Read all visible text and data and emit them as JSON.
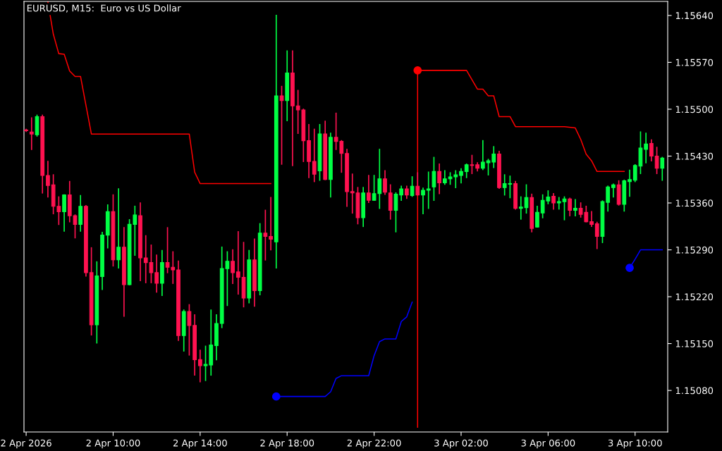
{
  "chart_data": {
    "type": "candlestick",
    "title": "EURUSD, M15:  Euro vs US Dollar",
    "x": [
      "2026-04-02T06:00",
      "2026-04-02T06:15",
      "2026-04-02T06:30",
      "2026-04-02T06:45",
      "2026-04-02T07:00",
      "2026-04-02T07:15",
      "2026-04-02T07:30",
      "2026-04-02T07:45",
      "2026-04-02T08:00",
      "2026-04-02T08:15",
      "2026-04-02T08:30",
      "2026-04-02T08:45",
      "2026-04-02T09:00",
      "2026-04-02T09:15",
      "2026-04-02T09:30",
      "2026-04-02T09:45",
      "2026-04-02T10:00",
      "2026-04-02T10:15",
      "2026-04-02T10:30",
      "2026-04-02T10:45",
      "2026-04-02T11:00",
      "2026-04-02T11:15",
      "2026-04-02T11:30",
      "2026-04-02T11:45",
      "2026-04-02T12:00",
      "2026-04-02T12:15",
      "2026-04-02T12:30",
      "2026-04-02T12:45",
      "2026-04-02T13:00",
      "2026-04-02T13:15",
      "2026-04-02T13:30",
      "2026-04-02T13:45",
      "2026-04-02T14:00",
      "2026-04-02T14:15",
      "2026-04-02T14:30",
      "2026-04-02T14:45",
      "2026-04-02T15:00",
      "2026-04-02T15:15",
      "2026-04-02T15:30",
      "2026-04-02T15:45",
      "2026-04-02T16:00",
      "2026-04-02T16:15",
      "2026-04-02T16:30",
      "2026-04-02T16:45",
      "2026-04-02T17:00",
      "2026-04-02T17:15",
      "2026-04-02T17:30",
      "2026-04-02T17:45",
      "2026-04-02T18:00",
      "2026-04-02T18:15",
      "2026-04-02T18:30",
      "2026-04-02T18:45",
      "2026-04-02T19:00",
      "2026-04-02T19:15",
      "2026-04-02T19:30",
      "2026-04-02T19:45",
      "2026-04-02T20:00",
      "2026-04-02T20:15",
      "2026-04-02T20:30",
      "2026-04-02T20:45",
      "2026-04-02T21:00",
      "2026-04-02T21:15",
      "2026-04-02T21:30",
      "2026-04-02T21:45",
      "2026-04-02T22:00",
      "2026-04-02T22:15",
      "2026-04-02T22:30",
      "2026-04-02T22:45",
      "2026-04-02T23:00",
      "2026-04-02T23:15",
      "2026-04-02T23:30",
      "2026-04-02T23:45",
      "2026-04-03T00:00",
      "2026-04-03T00:15",
      "2026-04-03T00:30",
      "2026-04-03T00:45",
      "2026-04-03T01:00",
      "2026-04-03T01:15",
      "2026-04-03T01:30",
      "2026-04-03T01:45",
      "2026-04-03T02:00",
      "2026-04-03T02:15",
      "2026-04-03T02:30",
      "2026-04-03T02:45",
      "2026-04-03T03:00",
      "2026-04-03T03:15",
      "2026-04-03T03:30",
      "2026-04-03T03:45",
      "2026-04-03T04:00",
      "2026-04-03T04:15",
      "2026-04-03T04:30",
      "2026-04-03T04:45",
      "2026-04-03T05:00",
      "2026-04-03T05:15",
      "2026-04-03T05:30",
      "2026-04-03T05:45",
      "2026-04-03T06:00",
      "2026-04-03T06:15",
      "2026-04-03T06:30",
      "2026-04-03T06:45",
      "2026-04-03T07:00",
      "2026-04-03T07:15",
      "2026-04-03T07:30",
      "2026-04-03T07:45",
      "2026-04-03T08:00",
      "2026-04-03T08:15",
      "2026-04-03T08:30",
      "2026-04-03T08:45",
      "2026-04-03T09:00",
      "2026-04-03T09:15",
      "2026-04-03T09:30",
      "2026-04-03T09:45",
      "2026-04-03T10:00",
      "2026-04-03T10:15",
      "2026-04-03T10:30",
      "2026-04-03T10:45",
      "2026-04-03T11:00",
      "2026-04-03T11:15"
    ],
    "ohlc": [
      [
        1.15469,
        1.1547,
        1.15467,
        1.15468
      ],
      [
        1.15466,
        1.15487,
        1.1544,
        1.15463
      ],
      [
        1.15462,
        1.15491,
        1.1546,
        1.15489
      ],
      [
        1.15489,
        1.15491,
        1.15375,
        1.15401
      ],
      [
        1.15401,
        1.15422,
        1.15369,
        1.15386
      ],
      [
        1.15387,
        1.15402,
        1.15344,
        1.15355
      ],
      [
        1.15355,
        1.15369,
        1.15328,
        1.15347
      ],
      [
        1.15347,
        1.15372,
        1.15318,
        1.15372
      ],
      [
        1.15372,
        1.15392,
        1.15332,
        1.15341
      ],
      [
        1.15341,
        1.15342,
        1.15308,
        1.15328
      ],
      [
        1.15328,
        1.15371,
        1.15318,
        1.15355
      ],
      [
        1.15355,
        1.15356,
        1.15251,
        1.15256
      ],
      [
        1.15256,
        1.15293,
        1.15163,
        1.15178
      ],
      [
        1.15178,
        1.15272,
        1.15151,
        1.15251
      ],
      [
        1.1525,
        1.15316,
        1.15231,
        1.15312
      ],
      [
        1.15312,
        1.15357,
        1.15293,
        1.15347
      ],
      [
        1.15347,
        1.15372,
        1.15266,
        1.15275
      ],
      [
        1.15275,
        1.15381,
        1.15263,
        1.15294
      ],
      [
        1.15294,
        1.15323,
        1.15191,
        1.15238
      ],
      [
        1.15238,
        1.15335,
        1.15238,
        1.15328
      ],
      [
        1.15328,
        1.15355,
        1.15282,
        1.15342
      ],
      [
        1.15341,
        1.1536,
        1.15244,
        1.15278
      ],
      [
        1.15278,
        1.15311,
        1.15241,
        1.15271
      ],
      [
        1.15271,
        1.15297,
        1.15241,
        1.15256
      ],
      [
        1.15256,
        1.15282,
        1.15227,
        1.1524
      ],
      [
        1.1524,
        1.15289,
        1.15222,
        1.15271
      ],
      [
        1.15271,
        1.15323,
        1.15256,
        1.15264
      ],
      [
        1.15264,
        1.15287,
        1.1524,
        1.1526
      ],
      [
        1.1526,
        1.15273,
        1.15155,
        1.15162
      ],
      [
        1.15162,
        1.152,
        1.15139,
        1.15198
      ],
      [
        1.15198,
        1.15208,
        1.15133,
        1.15177
      ],
      [
        1.15177,
        1.15193,
        1.15103,
        1.15126
      ],
      [
        1.15126,
        1.1514,
        1.15093,
        1.15117
      ],
      [
        1.15117,
        1.15146,
        1.15095,
        1.15119
      ],
      [
        1.15118,
        1.152,
        1.15103,
        1.15148
      ],
      [
        1.15147,
        1.15193,
        1.15126,
        1.1518
      ],
      [
        1.1518,
        1.15294,
        1.15174,
        1.15262
      ],
      [
        1.15262,
        1.15287,
        1.15207,
        1.15273
      ],
      [
        1.15273,
        1.1529,
        1.1524,
        1.15256
      ],
      [
        1.15257,
        1.15317,
        1.15224,
        1.15249
      ],
      [
        1.15249,
        1.15301,
        1.15205,
        1.15218
      ],
      [
        1.15218,
        1.15289,
        1.15211,
        1.15275
      ],
      [
        1.15275,
        1.15306,
        1.15206,
        1.15229
      ],
      [
        1.15229,
        1.15329,
        1.15223,
        1.15315
      ],
      [
        1.15315,
        1.15349,
        1.15275,
        1.1531
      ],
      [
        1.1531,
        1.15368,
        1.1529,
        1.15306
      ],
      [
        1.15302,
        1.1564,
        1.15263,
        1.1552
      ],
      [
        1.1552,
        1.15534,
        1.15418,
        1.15513
      ],
      [
        1.15513,
        1.15587,
        1.15483,
        1.15554
      ],
      [
        1.15554,
        1.15587,
        1.15416,
        1.15505
      ],
      [
        1.15505,
        1.15528,
        1.15464,
        1.15499
      ],
      [
        1.15499,
        1.155,
        1.15422,
        1.15453
      ],
      [
        1.15453,
        1.15477,
        1.15398,
        1.15422
      ],
      [
        1.15422,
        1.1547,
        1.15392,
        1.15403
      ],
      [
        1.15408,
        1.15477,
        1.15394,
        1.15463
      ],
      [
        1.15463,
        1.15482,
        1.15395,
        1.15395
      ],
      [
        1.15395,
        1.15464,
        1.15369,
        1.15458
      ],
      [
        1.15458,
        1.15494,
        1.1544,
        1.15452
      ],
      [
        1.15452,
        1.15453,
        1.15406,
        1.15434
      ],
      [
        1.15434,
        1.1544,
        1.15355,
        1.15377
      ],
      [
        1.15377,
        1.15403,
        1.15345,
        1.15375
      ],
      [
        1.15375,
        1.15383,
        1.15329,
        1.15338
      ],
      [
        1.15338,
        1.15383,
        1.15325,
        1.15375
      ],
      [
        1.15375,
        1.15401,
        1.15361,
        1.15364
      ],
      [
        1.15364,
        1.15401,
        1.15364,
        1.15374
      ],
      [
        1.15374,
        1.1544,
        1.15352,
        1.15396
      ],
      [
        1.15396,
        1.15408,
        1.15373,
        1.15376
      ],
      [
        1.15375,
        1.15387,
        1.15336,
        1.15349
      ],
      [
        1.15349,
        1.15375,
        1.15317,
        1.15373
      ],
      [
        1.15372,
        1.15385,
        1.15364,
        1.15381
      ],
      [
        1.15381,
        1.15385,
        1.15367,
        1.15372
      ],
      [
        1.15371,
        1.15399,
        1.1537,
        1.15385
      ],
      [
        1.15385,
        1.15405,
        1.15372,
        1.15372
      ],
      [
        1.15372,
        1.15382,
        1.15344,
        1.15379
      ],
      [
        1.15379,
        1.15406,
        1.15352,
        1.15381
      ],
      [
        1.15384,
        1.15428,
        1.15364,
        1.15407
      ],
      [
        1.15407,
        1.15418,
        1.15374,
        1.1539
      ],
      [
        1.1539,
        1.15408,
        1.15388,
        1.15396
      ],
      [
        1.15396,
        1.15405,
        1.15388,
        1.15399
      ],
      [
        1.15399,
        1.15408,
        1.15383,
        1.15402
      ],
      [
        1.15401,
        1.15411,
        1.1539,
        1.15407
      ],
      [
        1.15407,
        1.15418,
        1.15398,
        1.15417
      ],
      [
        1.15417,
        1.15431,
        1.15404,
        1.15416
      ],
      [
        1.15417,
        1.1542,
        1.15408,
        1.15412
      ],
      [
        1.15412,
        1.15453,
        1.1541,
        1.15421
      ],
      [
        1.1542,
        1.15425,
        1.15402,
        1.15423
      ],
      [
        1.15421,
        1.15444,
        1.15413,
        1.15433
      ],
      [
        1.15433,
        1.15437,
        1.15382,
        1.15383
      ],
      [
        1.15383,
        1.15402,
        1.15372,
        1.15389
      ],
      [
        1.15388,
        1.154,
        1.15368,
        1.15389
      ],
      [
        1.15389,
        1.15392,
        1.15351,
        1.15352
      ],
      [
        1.15352,
        1.15369,
        1.15336,
        1.15354
      ],
      [
        1.15353,
        1.15387,
        1.15345,
        1.15368
      ],
      [
        1.15368,
        1.15373,
        1.15317,
        1.15322
      ],
      [
        1.15324,
        1.15355,
        1.15324,
        1.15346
      ],
      [
        1.15345,
        1.15372,
        1.15338,
        1.15364
      ],
      [
        1.15363,
        1.15378,
        1.15359,
        1.15369
      ],
      [
        1.1537,
        1.15374,
        1.15351,
        1.1536
      ],
      [
        1.1536,
        1.15368,
        1.15351,
        1.15362
      ],
      [
        1.15362,
        1.15369,
        1.15335,
        1.15366
      ],
      [
        1.15366,
        1.15367,
        1.15341,
        1.15349
      ],
      [
        1.15349,
        1.15365,
        1.15341,
        1.15352
      ],
      [
        1.15352,
        1.1536,
        1.15339,
        1.15343
      ],
      [
        1.15346,
        1.15355,
        1.15332,
        1.15332
      ],
      [
        1.15332,
        1.15347,
        1.15325,
        1.15328
      ],
      [
        1.15329,
        1.15331,
        1.15292,
        1.1531
      ],
      [
        1.1531,
        1.15363,
        1.15301,
        1.15362
      ],
      [
        1.15361,
        1.15385,
        1.15348,
        1.15384
      ],
      [
        1.15383,
        1.15388,
        1.15369,
        1.15387
      ],
      [
        1.15387,
        1.15393,
        1.15357,
        1.15358
      ],
      [
        1.15358,
        1.15394,
        1.15348,
        1.15393
      ],
      [
        1.15392,
        1.15409,
        1.1537,
        1.15395
      ],
      [
        1.15394,
        1.15417,
        1.15392,
        1.15416
      ],
      [
        1.15415,
        1.15466,
        1.15404,
        1.15442
      ],
      [
        1.1544,
        1.15464,
        1.1542,
        1.15448
      ],
      [
        1.15449,
        1.15454,
        1.15423,
        1.1543
      ],
      [
        1.1543,
        1.15443,
        1.15404,
        1.15412
      ],
      [
        1.15412,
        1.15428,
        1.15394,
        1.15427
      ]
    ],
    "colors": [
      "#ff1250",
      "#ff1250",
      "#00ff44",
      "#ff1250",
      "#ff1250",
      "#ff1250",
      "#ff1250",
      "#00ff44",
      "#ff1250",
      "#ff1250",
      "#00ff44",
      "#ff1250",
      "#ff1250",
      "#00ff44",
      "#00ff44",
      "#00ff44",
      "#ff1250",
      "#00ff44",
      "#ff1250",
      "#00ff44",
      "#00ff44",
      "#ff1250",
      "#ff1250",
      "#ff1250",
      "#ff1250",
      "#00ff44",
      "#ff1250",
      "#ff1250",
      "#ff1250",
      "#00ff44",
      "#ff1250",
      "#ff1250",
      "#ff1250",
      "#00ff44",
      "#00ff44",
      "#00ff44",
      "#00ff44",
      "#00ff44",
      "#ff1250",
      "#ff1250",
      "#ff1250",
      "#00ff44",
      "#ff1250",
      "#00ff44",
      "#ff1250",
      "#ff1250",
      "#00ff44",
      "#ff1250",
      "#00ff44",
      "#ff1250",
      "#ff1250",
      "#ff1250",
      "#ff1250",
      "#ff1250",
      "#00ff44",
      "#ff1250",
      "#00ff44",
      "#ff1250",
      "#ff1250",
      "#ff1250",
      "#ff1250",
      "#ff1250",
      "#00ff44",
      "#ff1250",
      "#00ff44",
      "#00ff44",
      "#ff1250",
      "#ff1250",
      "#00ff44",
      "#00ff44",
      "#ff1250",
      "#00ff44",
      "#ff1250",
      "#00ff44",
      "#00ff44",
      "#00ff44",
      "#ff1250",
      "#00ff44",
      "#00ff44",
      "#00ff44",
      "#00ff44",
      "#00ff44",
      "#ff1250",
      "#ff1250",
      "#00ff44",
      "#00ff44",
      "#00ff44",
      "#ff1250",
      "#00ff44",
      "#00ff44",
      "#ff1250",
      "#00ff44",
      "#00ff44",
      "#ff1250",
      "#00ff44",
      "#00ff44",
      "#00ff44",
      "#ff1250",
      "#00ff44",
      "#00ff44",
      "#ff1250",
      "#00ff44",
      "#ff1250",
      "#ff1250",
      "#ff1250",
      "#ff1250",
      "#00ff44",
      "#00ff44",
      "#00ff44",
      "#ff1250",
      "#00ff44",
      "#00ff44",
      "#00ff44",
      "#00ff44",
      "#00ff44",
      "#ff1250",
      "#ff1250",
      "#00ff44"
    ],
    "series": [
      {
        "type": "line",
        "color": "#ff0000",
        "x": [
          "2026-04-02T07:00",
          "2026-04-02T07:15",
          "2026-04-02T07:30",
          "2026-04-02T07:45",
          "2026-04-02T08:00",
          "2026-04-02T08:15",
          "2026-04-02T08:30",
          "2026-04-02T08:45",
          "2026-04-02T09:00",
          "2026-04-02T13:30",
          "2026-04-02T13:45",
          "2026-04-02T14:00",
          "2026-04-02T17:15",
          "2026-04-02T17:30",
          "2026-04-03T00:00",
          "2026-04-03T02:15",
          "2026-04-03T02:30",
          "2026-04-03T02:45",
          "2026-04-03T03:00",
          "2026-04-03T03:15",
          "2026-04-03T03:30",
          "2026-04-03T03:45",
          "2026-04-03T04:15",
          "2026-04-03T04:30",
          "2026-04-03T06:45",
          "2026-04-03T07:15",
          "2026-04-03T07:30",
          "2026-04-03T07:45",
          "2026-04-03T08:00",
          "2026-04-03T08:15",
          "2026-04-03T09:30"
        ],
        "values": [
          1.1566,
          1.15612,
          1.15583,
          1.15582,
          1.15557,
          1.15549,
          1.15549,
          1.15506,
          1.15463,
          1.15463,
          1.15406,
          1.15389,
          1.15389,
          null,
          1.15558,
          1.15558,
          1.15544,
          1.1553,
          1.1553,
          1.1552,
          1.1552,
          1.15489,
          1.15489,
          1.15474,
          1.15474,
          1.15472,
          1.15455,
          1.15433,
          1.15423,
          1.15407,
          1.15407
        ]
      },
      {
        "type": "line",
        "color": "#ff0000",
        "x": [
          "2026-04-03T00:00",
          "2026-04-03T00:00"
        ],
        "values": [
          1.15558,
          1.15025
        ]
      },
      {
        "type": "line",
        "color": "#0000ff",
        "x": [
          "2026-04-02T17:30",
          "2026-04-02T19:45",
          "2026-04-02T20:00",
          "2026-04-02T20:15",
          "2026-04-02T20:30",
          "2026-04-02T21:45",
          "2026-04-02T22:00",
          "2026-04-02T22:15",
          "2026-04-02T22:30",
          "2026-04-02T23:00",
          "2026-04-02T23:15",
          "2026-04-02T23:30",
          "2026-04-02T23:45",
          "2026-04-03T00:00",
          "2026-04-03T09:45",
          "2026-04-03T10:00",
          "2026-04-03T10:15",
          "2026-04-03T11:15"
        ],
        "values": [
          1.15071,
          1.15071,
          1.15078,
          1.15098,
          1.15102,
          1.15102,
          1.15132,
          1.15153,
          1.15157,
          1.15157,
          1.15183,
          1.1519,
          1.15212,
          null,
          1.15263,
          1.15276,
          1.1529,
          1.1529
        ]
      },
      {
        "type": "scatter",
        "color": "#ff0000",
        "marker": "circle",
        "x": [
          "2026-04-03T00:00"
        ],
        "values": [
          1.15558
        ]
      },
      {
        "type": "scatter",
        "color": "#0000ff",
        "marker": "circle",
        "x": [
          "2026-04-02T17:30",
          "2026-04-03T09:45"
        ],
        "values": [
          1.15071,
          1.15263
        ]
      }
    ],
    "xlim": [
      "2026-04-02T05:54",
      "2026-04-03T11:30"
    ],
    "ylim": [
      1.15018,
      1.15661
    ],
    "xticks": [
      {
        "value": "2026-04-02T06:00",
        "label": "2 Apr 2026"
      },
      {
        "value": "2026-04-02T10:00",
        "label": "2 Apr 10:00"
      },
      {
        "value": "2026-04-02T14:00",
        "label": "2 Apr 14:00"
      },
      {
        "value": "2026-04-02T18:00",
        "label": "2 Apr 18:00"
      },
      {
        "value": "2026-04-02T22:00",
        "label": "2 Apr 22:00"
      },
      {
        "value": "2026-04-03T02:00",
        "label": "3 Apr 02:00"
      },
      {
        "value": "2026-04-03T06:00",
        "label": "3 Apr 06:00"
      },
      {
        "value": "2026-04-03T10:00",
        "label": "3 Apr 10:00"
      }
    ],
    "yticks": [
      {
        "value": 1.1564,
        "label": "1.15640"
      },
      {
        "value": 1.1557,
        "label": "1.15570"
      },
      {
        "value": 1.155,
        "label": "1.15500"
      },
      {
        "value": 1.1543,
        "label": "1.15430"
      },
      {
        "value": 1.1536,
        "label": "1.15360"
      },
      {
        "value": 1.1529,
        "label": "1.15290"
      },
      {
        "value": 1.1522,
        "label": "1.15220"
      },
      {
        "value": 1.1515,
        "label": "1.15150"
      },
      {
        "value": 1.1508,
        "label": "1.15080"
      }
    ]
  }
}
